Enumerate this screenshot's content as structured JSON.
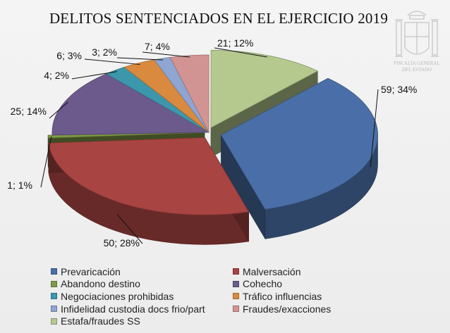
{
  "chart_data": {
    "type": "pie",
    "title": "DELITOS SENTENCIADOS EN EL EJERCICIO 2019",
    "legend_position": "bottom",
    "slices": [
      {
        "name": "Prevaricación",
        "value": 59,
        "percent": 34,
        "label": "59; 34%",
        "color": "#4a6fa8"
      },
      {
        "name": "Malversación",
        "value": 50,
        "percent": 28,
        "label": "50; 28%",
        "color": "#a84442"
      },
      {
        "name": "Abandono destino",
        "value": 1,
        "percent": 1,
        "label": "1; 1%",
        "color": "#7f9a47"
      },
      {
        "name": "Cohecho",
        "value": 25,
        "percent": 14,
        "label": "25; 14%",
        "color": "#6c5a8c"
      },
      {
        "name": "Negociaciones prohibidas",
        "value": 4,
        "percent": 2,
        "label": "4; 2%",
        "color": "#3d97ac"
      },
      {
        "name": "Tráfico influencias",
        "value": 6,
        "percent": 3,
        "label": "6; 3%",
        "color": "#d98a3e"
      },
      {
        "name": "Infidelidad custodia docs frio/part",
        "value": 3,
        "percent": 2,
        "label": "3; 2%",
        "color": "#8fa5d2"
      },
      {
        "name": "Fraudes/exacciones",
        "value": 7,
        "percent": 4,
        "label": "7; 4%",
        "color": "#d29492"
      },
      {
        "name": "Estafa/fraudes SS",
        "value": 21,
        "percent": 12,
        "label": "21; 12%",
        "color": "#b5c98f"
      }
    ]
  },
  "crest": {
    "text_line1": "FISCALÍA GENERAL",
    "text_line2": "DEL ESTADO"
  }
}
